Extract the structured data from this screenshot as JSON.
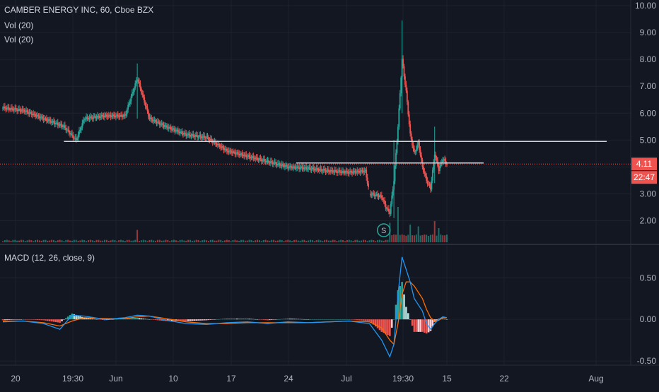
{
  "symbol": {
    "title": "CAMBER ENERGY INC, 60, Cboe BZX",
    "indicators": [
      "Vol (20)",
      "Vol (20)"
    ]
  },
  "colors": {
    "background": "#131722",
    "grid": "#1e222d",
    "axis_text": "#b2b5be",
    "up": "#26a69a",
    "down": "#ef5350",
    "macd_line": "#2196f3",
    "signal_line": "#ff6d00",
    "hist_up_strong": "#26a69a",
    "hist_up_weak": "#b2dfdb",
    "hist_down_strong": "#ef5350",
    "hist_down_weak": "#ffcdd2",
    "price_line": "#ef5350",
    "horizontal_line": "#d1d4dc"
  },
  "price_labels": {
    "last_price": "4.11",
    "countdown": "22:47"
  },
  "marker": {
    "label": "S"
  },
  "chart_data": [
    {
      "type": "candlestick",
      "title": "CAMBER ENERGY INC, 60, Cboe BZX",
      "ylim": [
        1.2,
        10.0
      ],
      "y_ticks": [
        2.0,
        3.0,
        4.0,
        5.0,
        6.0,
        7.0,
        8.0,
        9.0,
        10.0
      ],
      "y_tick_labels": [
        "2.00",
        "3.00",
        "4.00",
        "5.00",
        "6.00",
        "7.00",
        "8.00",
        "9.00",
        "10.00"
      ],
      "x_tick_labels": [
        "20",
        "19:30",
        "Jun",
        "10",
        "17",
        "24",
        "Jul",
        "19:30",
        "15",
        "22",
        "Aug"
      ],
      "last_price": 4.11,
      "horizontal_levels": [
        4.95,
        4.15
      ],
      "close_path": [
        [
          0,
          6.2
        ],
        [
          5,
          6.1
        ],
        [
          10,
          5.8
        ],
        [
          15,
          5.5
        ],
        [
          18,
          5.0
        ],
        [
          20,
          5.8
        ],
        [
          25,
          5.9
        ],
        [
          30,
          5.9
        ],
        [
          33,
          7.3
        ],
        [
          36,
          5.8
        ],
        [
          40,
          5.5
        ],
        [
          45,
          5.2
        ],
        [
          50,
          5.1
        ],
        [
          55,
          4.6
        ],
        [
          60,
          4.4
        ],
        [
          65,
          4.2
        ],
        [
          70,
          4.0
        ],
        [
          75,
          3.95
        ],
        [
          80,
          3.85
        ],
        [
          85,
          3.8
        ],
        [
          89,
          3.85
        ],
        [
          90,
          3.0
        ],
        [
          93,
          2.9
        ],
        [
          94,
          2.5
        ],
        [
          95,
          2.3
        ],
        [
          96,
          3.5
        ],
        [
          97,
          5.5
        ],
        [
          98,
          8.0
        ],
        [
          99,
          6.8
        ],
        [
          100,
          5.2
        ],
        [
          101,
          4.5
        ],
        [
          102,
          4.9
        ],
        [
          103,
          4.0
        ],
        [
          104,
          3.5
        ],
        [
          105,
          3.2
        ],
        [
          106,
          4.5
        ],
        [
          107,
          3.9
        ],
        [
          108,
          4.3
        ],
        [
          109,
          4.1
        ]
      ],
      "volume_spikes": [
        [
          33,
          0.35
        ],
        [
          95,
          0.55
        ],
        [
          97,
          1.0
        ],
        [
          100,
          0.5
        ],
        [
          102,
          0.45
        ],
        [
          106,
          0.6
        ],
        [
          107,
          0.4
        ]
      ]
    },
    {
      "type": "line",
      "title": "MACD (12, 26, close, 9)",
      "ylim": [
        -0.55,
        0.85
      ],
      "y_ticks": [
        -0.5,
        0.0,
        0.5
      ],
      "y_tick_labels": [
        "-0.50",
        "0.00",
        "0.50"
      ],
      "series": [
        {
          "role": "macd",
          "points": [
            [
              0,
              -0.03
            ],
            [
              5,
              -0.02
            ],
            [
              10,
              -0.05
            ],
            [
              14,
              -0.12
            ],
            [
              17,
              0.05
            ],
            [
              20,
              0.04
            ],
            [
              25,
              0.0
            ],
            [
              30,
              0.02
            ],
            [
              33,
              0.05
            ],
            [
              36,
              0.04
            ],
            [
              40,
              -0.01
            ],
            [
              45,
              -0.05
            ],
            [
              50,
              -0.06
            ],
            [
              55,
              -0.04
            ],
            [
              60,
              -0.03
            ],
            [
              65,
              -0.05
            ],
            [
              70,
              -0.03
            ],
            [
              75,
              -0.04
            ],
            [
              80,
              -0.03
            ],
            [
              85,
              -0.02
            ],
            [
              90,
              -0.05
            ],
            [
              93,
              -0.25
            ],
            [
              95,
              -0.45
            ],
            [
              96,
              -0.3
            ],
            [
              97,
              0.3
            ],
            [
              98,
              0.75
            ],
            [
              99,
              0.6
            ],
            [
              100,
              0.45
            ],
            [
              101,
              0.25
            ],
            [
              103,
              0.1
            ],
            [
              104,
              -0.05
            ],
            [
              105,
              -0.12
            ],
            [
              106,
              -0.05
            ],
            [
              107,
              0.0
            ],
            [
              108,
              0.03
            ],
            [
              109,
              0.02
            ]
          ]
        },
        {
          "role": "signal",
          "points": [
            [
              0,
              -0.02
            ],
            [
              5,
              -0.02
            ],
            [
              10,
              -0.04
            ],
            [
              14,
              -0.08
            ],
            [
              17,
              -0.02
            ],
            [
              20,
              0.02
            ],
            [
              25,
              0.01
            ],
            [
              30,
              0.01
            ],
            [
              33,
              0.03
            ],
            [
              36,
              0.04
            ],
            [
              40,
              0.01
            ],
            [
              45,
              -0.03
            ],
            [
              50,
              -0.05
            ],
            [
              55,
              -0.05
            ],
            [
              60,
              -0.04
            ],
            [
              65,
              -0.04
            ],
            [
              70,
              -0.04
            ],
            [
              75,
              -0.04
            ],
            [
              80,
              -0.03
            ],
            [
              85,
              -0.02
            ],
            [
              90,
              -0.03
            ],
            [
              93,
              -0.1
            ],
            [
              95,
              -0.25
            ],
            [
              96,
              -0.3
            ],
            [
              97,
              -0.05
            ],
            [
              98,
              0.3
            ],
            [
              99,
              0.45
            ],
            [
              100,
              0.45
            ],
            [
              101,
              0.4
            ],
            [
              103,
              0.25
            ],
            [
              104,
              0.12
            ],
            [
              105,
              0.02
            ],
            [
              106,
              -0.02
            ],
            [
              107,
              -0.01
            ],
            [
              108,
              0.02
            ],
            [
              109,
              0.02
            ]
          ]
        }
      ]
    }
  ]
}
